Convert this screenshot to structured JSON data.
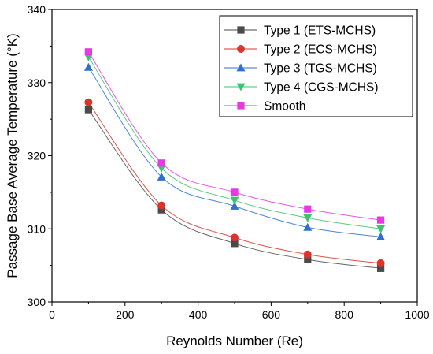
{
  "chart_data": {
    "type": "scatter",
    "title": "",
    "xlabel": "Reynolds Number (Re)",
    "ylabel": "Passage Base Average Temperature (°K)",
    "xlim": [
      0,
      1000
    ],
    "ylim": [
      300,
      340
    ],
    "xticks": [
      0,
      200,
      400,
      600,
      800,
      1000
    ],
    "yticks": [
      300,
      310,
      320,
      330,
      340
    ],
    "grid": false,
    "legend_position": "top-right",
    "x": [
      100,
      300,
      500,
      700,
      900
    ],
    "series": [
      {
        "name": "Type 1 (ETS-MCHS)",
        "marker": "square",
        "color": "#4a4a4a",
        "values": [
          326.3,
          312.6,
          308.0,
          305.8,
          304.6
        ]
      },
      {
        "name": "Type 2 (ECS-MCHS)",
        "marker": "circle",
        "color": "#e0312b",
        "values": [
          327.3,
          313.2,
          308.8,
          306.5,
          305.3
        ]
      },
      {
        "name": "Type 3 (TGS-MCHS)",
        "marker": "triangle-up",
        "color": "#2f6fd1",
        "values": [
          332.1,
          317.1,
          313.1,
          310.2,
          308.9
        ]
      },
      {
        "name": "Type 4 (CGS-MCHS)",
        "marker": "triangle-down",
        "color": "#3cc46a",
        "values": [
          333.5,
          318.3,
          313.9,
          311.5,
          310.0
        ]
      },
      {
        "name": "Smooth",
        "marker": "square",
        "color": "#e936e9",
        "values": [
          334.2,
          319.0,
          315.0,
          312.7,
          311.2
        ]
      }
    ]
  }
}
